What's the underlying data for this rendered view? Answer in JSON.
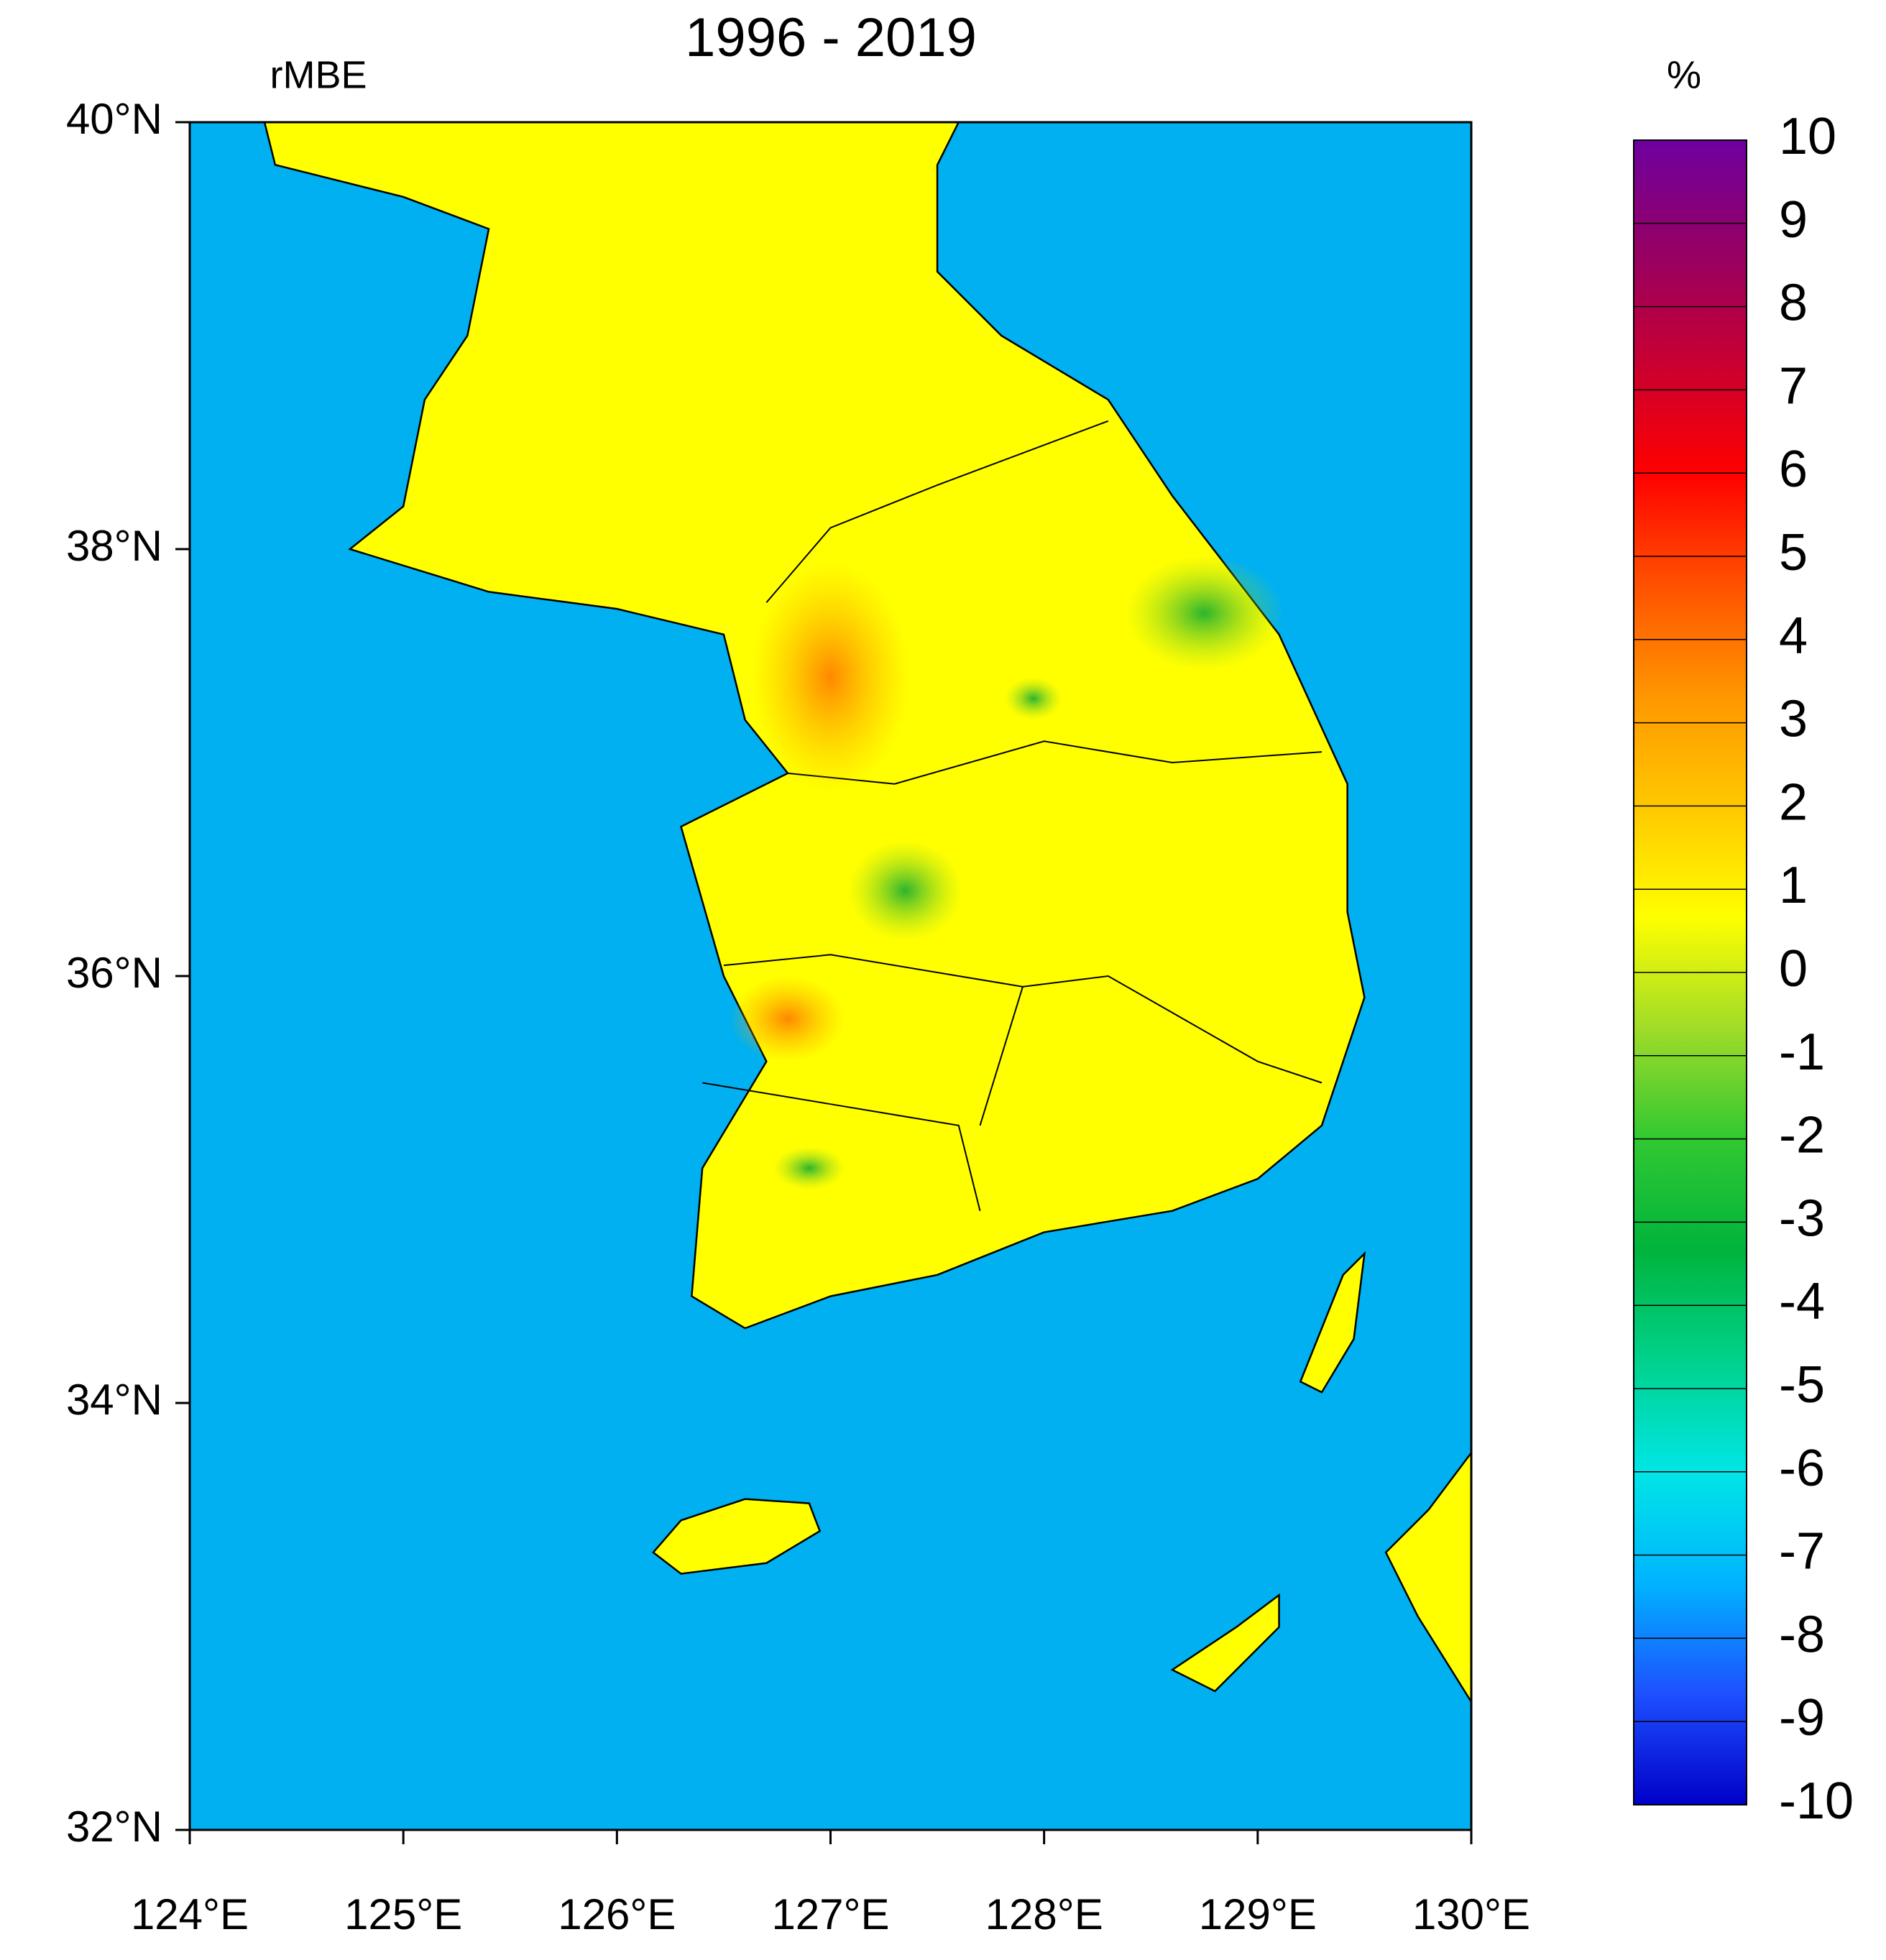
{
  "chart_data": {
    "type": "map",
    "title": "1996 - 2019",
    "subtitle": "rMBE",
    "colorbar_unit": "%",
    "xlim": [
      124,
      130
    ],
    "ylim": [
      32,
      40
    ],
    "xticks": [
      {
        "value": 124,
        "label": "124°E"
      },
      {
        "value": 125,
        "label": "125°E"
      },
      {
        "value": 126,
        "label": "126°E"
      },
      {
        "value": 127,
        "label": "127°E"
      },
      {
        "value": 128,
        "label": "128°E"
      },
      {
        "value": 129,
        "label": "129°E"
      },
      {
        "value": 130,
        "label": "130°E"
      }
    ],
    "yticks": [
      {
        "value": 32,
        "label": "32°N"
      },
      {
        "value": 34,
        "label": "34°N"
      },
      {
        "value": 36,
        "label": "36°N"
      },
      {
        "value": 38,
        "label": "38°N"
      },
      {
        "value": 40,
        "label": "40°N"
      }
    ],
    "colorbar_lim": [
      -10,
      10
    ],
    "colorbar_ticks": [
      -10,
      -9,
      -8,
      -7,
      -6,
      -5,
      -4,
      -3,
      -2,
      -1,
      0,
      1,
      2,
      3,
      4,
      5,
      6,
      7,
      8,
      9,
      10
    ],
    "colorbar_colors": [
      "#0000c8",
      "#1e50ff",
      "#00b4ff",
      "#00e6e6",
      "#00d28c",
      "#00b43c",
      "#32c832",
      "#a0dc28",
      "#ffff00",
      "#ffc800",
      "#ff9600",
      "#ff5000",
      "#ff0000",
      "#c80032",
      "#960064",
      "#6e00a0"
    ],
    "ocean_color": "#00b0f0",
    "land_color": "#ffff00"
  }
}
